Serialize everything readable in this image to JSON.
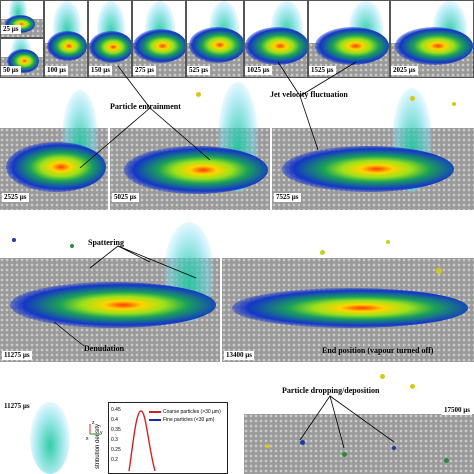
{
  "frames_top": [
    {
      "label": "25 µs"
    },
    {
      "label": "50 µs"
    },
    {
      "label": "100 µs"
    },
    {
      "label": "150 µs"
    },
    {
      "label": "275 µs"
    },
    {
      "label": "525 µs"
    },
    {
      "label": "1025 µs"
    },
    {
      "label": "1525 µs"
    },
    {
      "label": "2025 µs"
    }
  ],
  "frames_row2": [
    {
      "label": "2525 µs"
    },
    {
      "label": "5025 µs"
    },
    {
      "label": "7525 µs"
    }
  ],
  "frames_row3": [
    {
      "label": "11275 µs"
    },
    {
      "label": "13400 µs"
    }
  ],
  "frame_bottom_left": {
    "label": "11275 µs"
  },
  "frame_bottom_right": {
    "label": "17500 µs"
  },
  "annotations": {
    "particle_entrainment": "Particle entrainment",
    "jet_velocity": "Jet velocity fluctuation",
    "spattering": "Spattering",
    "denudation": "Denudation",
    "end_position": "End position (vapour turned off)",
    "particle_dropping": "Particle dropping/deposition"
  },
  "graph": {
    "ylabel": "stribution density",
    "yticks": [
      "0.45",
      "0.4",
      "0.35",
      "0.3",
      "0.25",
      "0.2"
    ],
    "legend": [
      {
        "name": "Coarse particles (>30 µm)",
        "color": "#d62020"
      },
      {
        "name": "Fine particles (<30 µm)",
        "color": "#1a2a9c"
      }
    ],
    "axes_labels": {
      "x": "x",
      "y": "y",
      "z": "z"
    }
  },
  "colors": {
    "melt_hot": "#ff3b00",
    "melt_warm": "#ffd400",
    "powder": "#9a9a9a",
    "spatter_blue": "#1436c8"
  }
}
